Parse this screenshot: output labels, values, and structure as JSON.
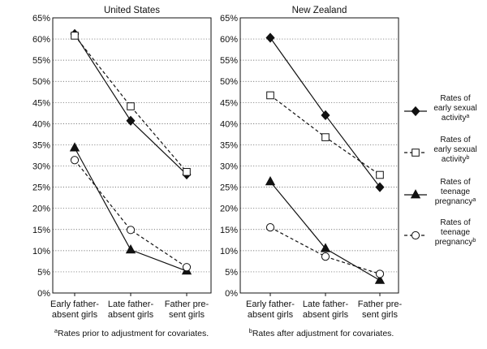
{
  "chart_data": [
    {
      "type": "line",
      "title": "United States",
      "categories": [
        "Early father-absent girls",
        "Late father-absent girls",
        "Father present girls"
      ],
      "category_label_lines": [
        [
          "Early father-",
          "absent girls"
        ],
        [
          "Late father-",
          "absent girls"
        ],
        [
          "Father pre-",
          "sent girls"
        ]
      ],
      "ylim": [
        0,
        65
      ],
      "yticks": [
        0,
        5,
        10,
        15,
        20,
        25,
        30,
        35,
        40,
        45,
        50,
        55,
        60,
        65
      ],
      "ytick_format": "%",
      "grid": "horizontal dotted",
      "series": [
        {
          "values": [
            61.2,
            40.7,
            28.0
          ]
        },
        {
          "values": [
            60.8,
            44.1,
            28.6
          ]
        },
        {
          "values": [
            34.3,
            10.2,
            5.2
          ]
        },
        {
          "values": [
            31.4,
            14.9,
            6.1
          ]
        }
      ],
      "footnote": {
        "mark": "a",
        "text": "Rates prior to adjustment for covariates."
      }
    },
    {
      "type": "line",
      "title": "New Zealand",
      "categories": [
        "Early father-absent girls",
        "Late father-absent girls",
        "Father present girls"
      ],
      "category_label_lines": [
        [
          "Early father-",
          "absent girls"
        ],
        [
          "Late father-",
          "absent girls"
        ],
        [
          "Father pre-",
          "sent girls"
        ]
      ],
      "ylim": [
        0,
        65
      ],
      "yticks": [
        0,
        5,
        10,
        15,
        20,
        25,
        30,
        35,
        40,
        45,
        50,
        55,
        60,
        65
      ],
      "ytick_format": "%",
      "grid": "horizontal dotted",
      "series": [
        {
          "values": [
            60.3,
            42.0,
            25.0
          ]
        },
        {
          "values": [
            46.7,
            36.8,
            27.9
          ]
        },
        {
          "values": [
            26.3,
            10.5,
            3.0
          ]
        },
        {
          "values": [
            15.5,
            8.6,
            4.5
          ]
        }
      ],
      "footnote": {
        "mark": "b",
        "text": "Rates after adjustment for covariates."
      }
    }
  ],
  "legend": {
    "placement": "right",
    "items": [
      {
        "lines": [
          "Rates of",
          "early sexual",
          "activity"
        ],
        "sup": "a",
        "marker": "diamond-filled",
        "line": "solid"
      },
      {
        "lines": [
          "Rates of",
          "early sexual",
          "activity"
        ],
        "sup": "b",
        "marker": "square-open",
        "line": "dashed"
      },
      {
        "lines": [
          "Rates of",
          "teenage",
          "pregnancy"
        ],
        "sup": "a",
        "marker": "triangle-filled",
        "line": "solid"
      },
      {
        "lines": [
          "Rates of",
          "teenage",
          "pregnancy"
        ],
        "sup": "b",
        "marker": "circle-open",
        "line": "dashed"
      }
    ]
  },
  "colors": {
    "ink": "#111111",
    "grid": "#555555",
    "background": "#ffffff"
  }
}
